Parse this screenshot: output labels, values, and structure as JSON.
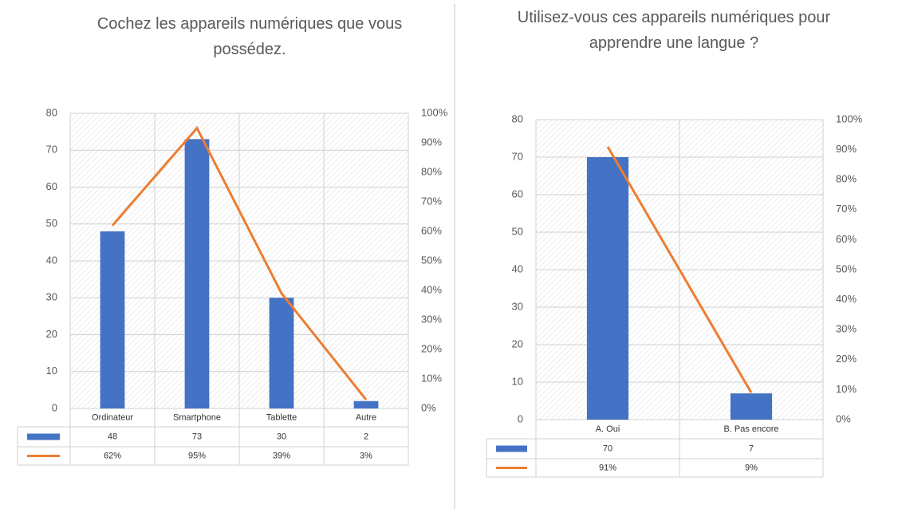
{
  "chart_data": [
    {
      "type": "bar",
      "title": "Cochez les appareils numériques que vous possédez.",
      "categories": [
        "Ordinateur",
        "Smartphone",
        "Tablette",
        "Autre"
      ],
      "series": [
        {
          "type": "bar",
          "color": "#4472c4",
          "values": [
            48,
            73,
            30,
            2
          ]
        },
        {
          "type": "line",
          "axis": "y2",
          "color": "#ed7d31",
          "values": [
            62,
            95,
            39,
            3
          ],
          "value_labels": [
            "62%",
            "95%",
            "39%",
            "3%"
          ]
        }
      ],
      "ylim": [
        0,
        80
      ],
      "yticks": [
        0,
        10,
        20,
        30,
        40,
        50,
        60,
        70,
        80
      ],
      "y2lim": [
        0,
        100
      ],
      "y2ticks": [
        {
          "value": 0,
          "label": "0%"
        },
        {
          "value": 10,
          "label": "10%"
        },
        {
          "value": 20,
          "label": "20%"
        },
        {
          "value": 30,
          "label": "30%"
        },
        {
          "value": 40,
          "label": "40%"
        },
        {
          "value": 50,
          "label": "50%"
        },
        {
          "value": 60,
          "label": "60%"
        },
        {
          "value": 70,
          "label": "70%"
        },
        {
          "value": 80,
          "label": "80%"
        },
        {
          "value": 90,
          "label": "90%"
        },
        {
          "value": 100,
          "label": "100%"
        }
      ],
      "grid": true
    },
    {
      "type": "bar",
      "title": "Utilisez-vous ces appareils numériques pour apprendre une langue ?",
      "categories": [
        "A. Oui",
        "B. Pas encore"
      ],
      "series": [
        {
          "type": "bar",
          "color": "#4472c4",
          "values": [
            70,
            7
          ]
        },
        {
          "type": "line",
          "axis": "y2",
          "color": "#ed7d31",
          "values": [
            91,
            9
          ],
          "value_labels": [
            "91%",
            "9%"
          ]
        }
      ],
      "ylim": [
        0,
        80
      ],
      "yticks": [
        0,
        10,
        20,
        30,
        40,
        50,
        60,
        70,
        80
      ],
      "y2lim": [
        0,
        100
      ],
      "y2ticks": [
        {
          "value": 0,
          "label": "0%"
        },
        {
          "value": 10,
          "label": "10%"
        },
        {
          "value": 20,
          "label": "20%"
        },
        {
          "value": 30,
          "label": "30%"
        },
        {
          "value": 40,
          "label": "40%"
        },
        {
          "value": 50,
          "label": "50%"
        },
        {
          "value": 60,
          "label": "60%"
        },
        {
          "value": 70,
          "label": "70%"
        },
        {
          "value": 80,
          "label": "80%"
        },
        {
          "value": 90,
          "label": "90%"
        },
        {
          "value": 100,
          "label": "100%"
        }
      ],
      "grid": true
    }
  ]
}
